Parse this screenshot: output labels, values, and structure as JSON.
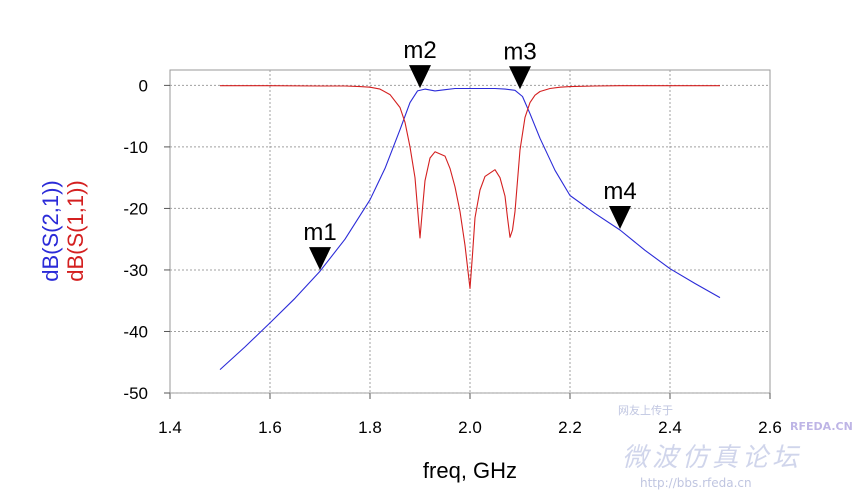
{
  "chart_data": {
    "type": "line",
    "xlabel": "freq, GHz",
    "ylabels": [
      "dB(S(2,1))",
      "dB(S(1,1))"
    ],
    "xlim": [
      1.4,
      2.6
    ],
    "ylim": [
      -50,
      2.5
    ],
    "xticks": [
      "1.4",
      "1.6",
      "1.8",
      "2.0",
      "2.2",
      "2.4",
      "2.6"
    ],
    "yticks": [
      "0",
      "-10",
      "-20",
      "-30",
      "-40",
      "-50"
    ],
    "grid": true,
    "colors": {
      "s21": "#2b2bd8",
      "s11": "#d42020"
    },
    "series": [
      {
        "name": "dB(S(2,1))",
        "color": "#2b2bd8",
        "x": [
          1.5,
          1.55,
          1.6,
          1.65,
          1.7,
          1.75,
          1.8,
          1.83,
          1.86,
          1.88,
          1.895,
          1.91,
          1.93,
          1.95,
          1.97,
          2.0,
          2.03,
          2.05,
          2.07,
          2.09,
          2.105,
          2.12,
          2.14,
          2.17,
          2.2,
          2.25,
          2.3,
          2.35,
          2.4,
          2.45,
          2.5
        ],
        "y": [
          -46.2,
          -42.5,
          -38.6,
          -34.6,
          -30.2,
          -25.0,
          -18.6,
          -13.5,
          -7.2,
          -2.8,
          -0.9,
          -0.6,
          -0.9,
          -0.7,
          -0.5,
          -0.5,
          -0.5,
          -0.5,
          -0.6,
          -0.8,
          -1.8,
          -4.6,
          -8.6,
          -13.8,
          -17.9,
          -20.8,
          -23.5,
          -26.8,
          -29.8,
          -32.2,
          -34.5
        ]
      },
      {
        "name": "dB(S(1,1))",
        "color": "#d42020",
        "x": [
          1.5,
          1.6,
          1.7,
          1.75,
          1.78,
          1.8,
          1.82,
          1.84,
          1.86,
          1.87,
          1.88,
          1.89,
          1.9,
          1.905,
          1.91,
          1.92,
          1.93,
          1.95,
          1.96,
          1.97,
          1.98,
          1.99,
          1.995,
          2.0,
          2.005,
          2.01,
          2.02,
          2.03,
          2.05,
          2.06,
          2.07,
          2.075,
          2.08,
          2.085,
          2.09,
          2.1,
          2.11,
          2.12,
          2.13,
          2.14,
          2.16,
          2.18,
          2.2,
          2.25,
          2.3,
          2.4,
          2.5
        ],
        "y": [
          -0.05,
          -0.05,
          -0.1,
          -0.1,
          -0.2,
          -0.3,
          -0.6,
          -1.5,
          -3.6,
          -6.0,
          -10.0,
          -15.0,
          -24.8,
          -20.0,
          -15.5,
          -11.8,
          -10.8,
          -11.5,
          -13.5,
          -16.5,
          -20.5,
          -26.0,
          -29.5,
          -33.0,
          -27.5,
          -21.5,
          -17.0,
          -14.8,
          -13.7,
          -15.0,
          -18.0,
          -21.5,
          -24.7,
          -23.5,
          -20.5,
          -10.5,
          -5.2,
          -2.8,
          -1.6,
          -1.0,
          -0.5,
          -0.3,
          -0.2,
          -0.1,
          -0.05,
          -0.05,
          -0.05
        ]
      }
    ],
    "markers": [
      {
        "label": "m1",
        "x": 1.7,
        "y": -30.2
      },
      {
        "label": "m2",
        "x": 1.9,
        "y": -0.6
      },
      {
        "label": "m3",
        "x": 2.1,
        "y": -0.8
      },
      {
        "label": "m4",
        "x": 2.3,
        "y": -23.5
      }
    ]
  },
  "watermark": {
    "line1": "网友上传于",
    "brand": "RFEDA.CN",
    "line2": "微波仿真论坛",
    "url": "http://bbs.rfeda.cn"
  }
}
